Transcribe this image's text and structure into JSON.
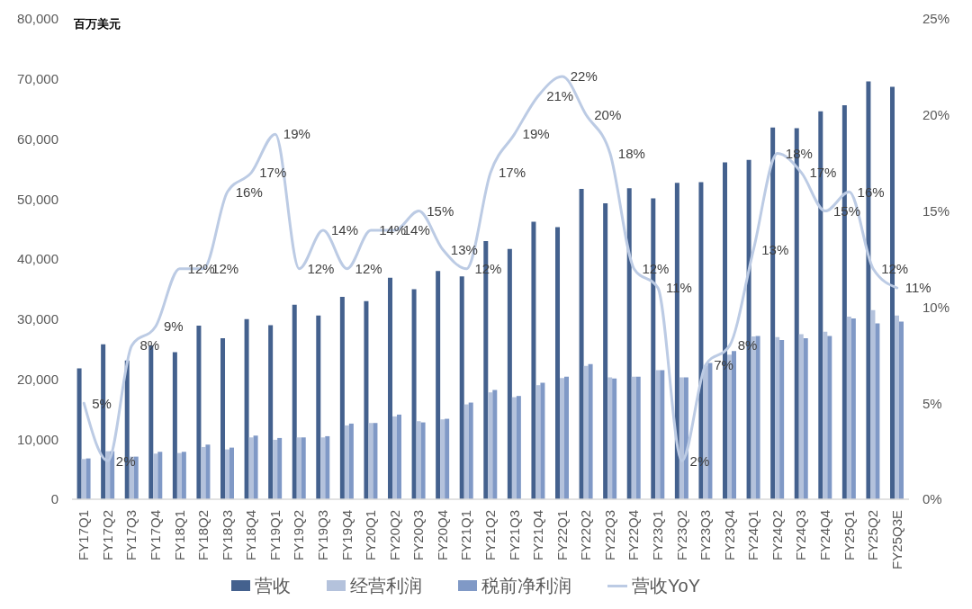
{
  "chart_data": {
    "type": "bar",
    "ylabel": "百万美元",
    "categories": [
      "FY17Q1",
      "FY17Q2",
      "FY17Q3",
      "FY17Q4",
      "FY18Q1",
      "FY18Q2",
      "FY18Q3",
      "FY18Q4",
      "FY19Q1",
      "FY19Q2",
      "FY19Q3",
      "FY19Q4",
      "FY20Q1",
      "FY20Q2",
      "FY20Q3",
      "FY20Q4",
      "FY21Q1",
      "FY21Q2",
      "FY21Q3",
      "FY21Q4",
      "FY22Q1",
      "FY22Q2",
      "FY22Q3",
      "FY22Q4",
      "FY23Q1",
      "FY23Q2",
      "FY23Q3",
      "FY23Q4",
      "FY24Q1",
      "FY24Q2",
      "FY24Q3",
      "FY24Q4",
      "FY25Q1",
      "FY25Q2",
      "FY25Q3E"
    ],
    "series": [
      {
        "name": "营收",
        "color": "#44618e",
        "values": [
          21800,
          25800,
          23100,
          25600,
          24500,
          28900,
          26800,
          30000,
          29000,
          32400,
          30600,
          33700,
          33000,
          36900,
          35000,
          38000,
          37100,
          43000,
          41700,
          46200,
          45300,
          51700,
          49300,
          51800,
          50100,
          52700,
          52800,
          56100,
          56500,
          61900,
          61800,
          64600,
          65600,
          69600,
          68700
        ]
      },
      {
        "name": "经营利润",
        "color": "#b4c2dc",
        "values": [
          6700,
          8000,
          7100,
          7600,
          7700,
          8700,
          8300,
          10300,
          9900,
          10300,
          10300,
          12300,
          12700,
          13800,
          13000,
          13300,
          15800,
          17800,
          17000,
          19000,
          20200,
          22200,
          20300,
          20400,
          21500,
          20300,
          22300,
          24100,
          27100,
          27000,
          27500,
          27900,
          30400,
          31500,
          30600
        ]
      },
      {
        "name": "税前净利润",
        "color": "#8099c6",
        "values": [
          6800,
          8000,
          7100,
          7900,
          7900,
          9100,
          8600,
          10600,
          10200,
          10300,
          10500,
          12600,
          12700,
          14100,
          12800,
          13400,
          16100,
          18200,
          17200,
          19400,
          20400,
          22500,
          20100,
          20400,
          21500,
          20300,
          22700,
          24700,
          27200,
          26500,
          26800,
          27200,
          30100,
          29300,
          29600
        ]
      },
      {
        "name": "营收YoY",
        "type": "line",
        "axis": "y2",
        "color": "#bccbe4",
        "marker": "none",
        "line_style": "solid",
        "values": [
          5,
          2,
          8,
          9,
          12,
          12,
          16,
          17,
          19,
          12,
          14,
          12,
          14,
          14,
          15,
          13,
          12,
          17,
          19,
          21,
          22,
          20,
          18,
          12,
          11,
          2,
          7,
          8,
          13,
          18,
          17,
          15,
          16,
          12,
          11
        ],
        "value_labels": [
          "5%",
          "2%",
          "8%",
          "9%",
          "12%",
          "12%",
          "16%",
          "17%",
          "19%",
          "12%",
          "14%",
          "12%",
          "14%",
          "14%",
          "15%",
          "13%",
          "12%",
          "17%",
          "19%",
          "21%",
          "22%",
          "20%",
          "18%",
          "12%",
          "11%",
          "2%",
          "7%",
          "8%",
          "13%",
          "18%",
          "17%",
          "15%",
          "16%",
          "12%",
          "11%"
        ]
      }
    ],
    "ylim": [
      0,
      80000
    ],
    "yticks": [
      0,
      {
        "value": 10000,
        "label": "10,000"
      },
      {
        "value": 20000,
        "label": "20,000"
      },
      {
        "value": 30000,
        "label": "30,000"
      },
      {
        "value": 40000,
        "label": "40,000"
      },
      {
        "value": 50000,
        "label": "50,000"
      },
      {
        "value": 60000,
        "label": "60,000"
      },
      {
        "value": 70000,
        "label": "70,000"
      },
      {
        "value": 80000,
        "label": "80,000"
      }
    ],
    "y2lim": [
      0,
      25
    ],
    "y2ticks": [
      {
        "value": 0,
        "label": "0%"
      },
      {
        "value": 5,
        "label": "5%"
      },
      {
        "value": 10,
        "label": "10%"
      },
      {
        "value": 15,
        "label": "15%"
      },
      {
        "value": 20,
        "label": "20%"
      },
      {
        "value": 25,
        "label": "25%"
      }
    ],
    "grid": false,
    "legend": "bottom"
  }
}
